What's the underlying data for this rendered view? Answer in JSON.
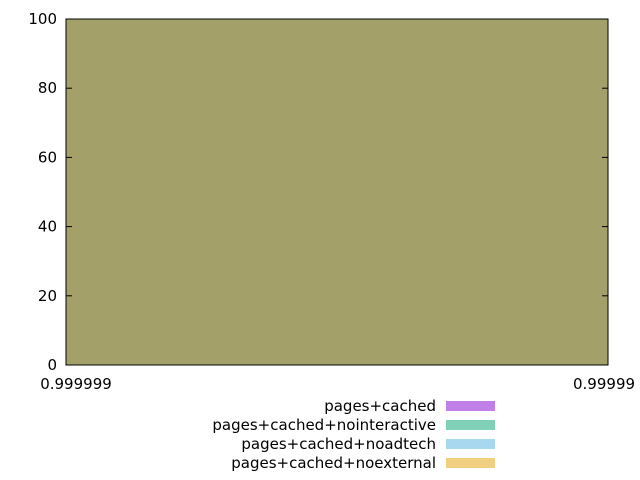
{
  "chart_data": {
    "type": "area",
    "title": "",
    "xlabel": "",
    "ylabel": "",
    "x_tick_labels": [
      "0.999999",
      "0.99999"
    ],
    "y_ticks": [
      0,
      20,
      40,
      60,
      80,
      100
    ],
    "ylim": [
      0,
      100
    ],
    "grid": false,
    "legend_position": "bottom-center",
    "series": [
      {
        "name": "pages+cached",
        "color": "#c080e8",
        "values": [
          100,
          100
        ]
      },
      {
        "name": "pages+cached+nointeractive",
        "color": "#80d0b8",
        "values": [
          100,
          100
        ]
      },
      {
        "name": "pages+cached+noadtech",
        "color": "#a8d8f0",
        "values": [
          100,
          100
        ]
      },
      {
        "name": "pages+cached+noexternal",
        "color": "#f0d080",
        "values": [
          100,
          100
        ]
      }
    ],
    "fill_color": "#a3a06a"
  }
}
